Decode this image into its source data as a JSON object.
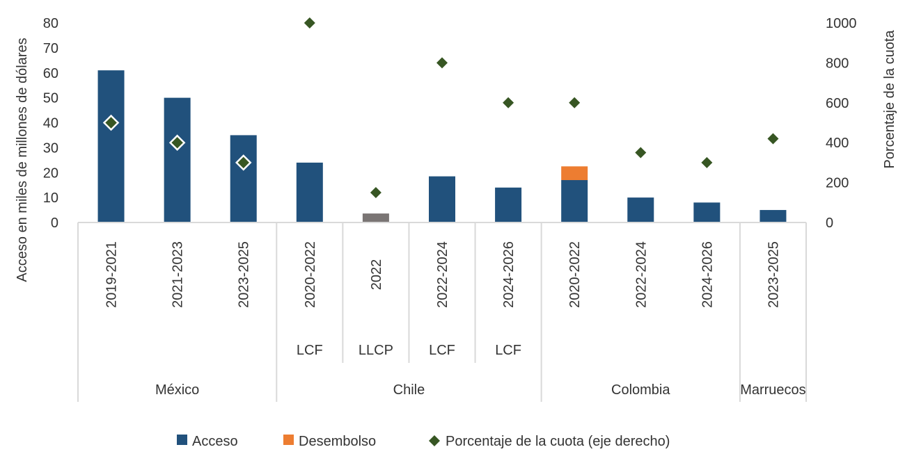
{
  "chart_data": {
    "type": "bar",
    "title": "",
    "ylabel": "Acceso en miles de millones de dólares",
    "y2label": "Porcentaje de la cuota",
    "ylim": [
      0,
      80
    ],
    "y2lim": [
      0,
      1000
    ],
    "yticks": [
      "0",
      "10",
      "20",
      "30",
      "40",
      "50",
      "60",
      "70",
      "80"
    ],
    "y2ticks": [
      "0",
      "200",
      "400",
      "600",
      "800",
      "1000"
    ],
    "categories": [
      "2019-2021",
      "2021-2023",
      "2023-2025",
      "2020-2022",
      "2022",
      "2022-2024",
      "2024-2026",
      "2020-2022",
      "2022-2024",
      "2024-2026",
      "2023-2025"
    ],
    "sublabels": [
      "",
      "",
      "",
      "LCF",
      "LLCP",
      "LCF",
      "LCF",
      "",
      "",
      "",
      ""
    ],
    "groups": [
      {
        "name": "México",
        "span": 3
      },
      {
        "name": "Chile",
        "span": 4
      },
      {
        "name": "Colombia",
        "span": 3
      },
      {
        "name": "Marruecos",
        "span": 1
      }
    ],
    "series": [
      {
        "name": "Acceso",
        "color": "#21517c",
        "values": [
          61,
          50,
          35,
          24,
          3.6,
          18.5,
          14,
          17,
          10,
          8,
          5
        ],
        "bar_colors": {
          "4": "#7a7574"
        }
      },
      {
        "name": "Desembolso",
        "color": "#ed7d31",
        "values": [
          0,
          0,
          0,
          0,
          0,
          0,
          0,
          5.5,
          0,
          0,
          0
        ]
      },
      {
        "name": "Porcentaje de la cuota (eje derecho)",
        "color": "#375623",
        "axis": "right",
        "type": "scatter",
        "values": [
          500,
          400,
          300,
          1000,
          150,
          800,
          600,
          600,
          350,
          300,
          420
        ],
        "outlined": [
          0,
          1,
          2
        ]
      }
    ],
    "legend_position": "bottom",
    "grid": false
  }
}
